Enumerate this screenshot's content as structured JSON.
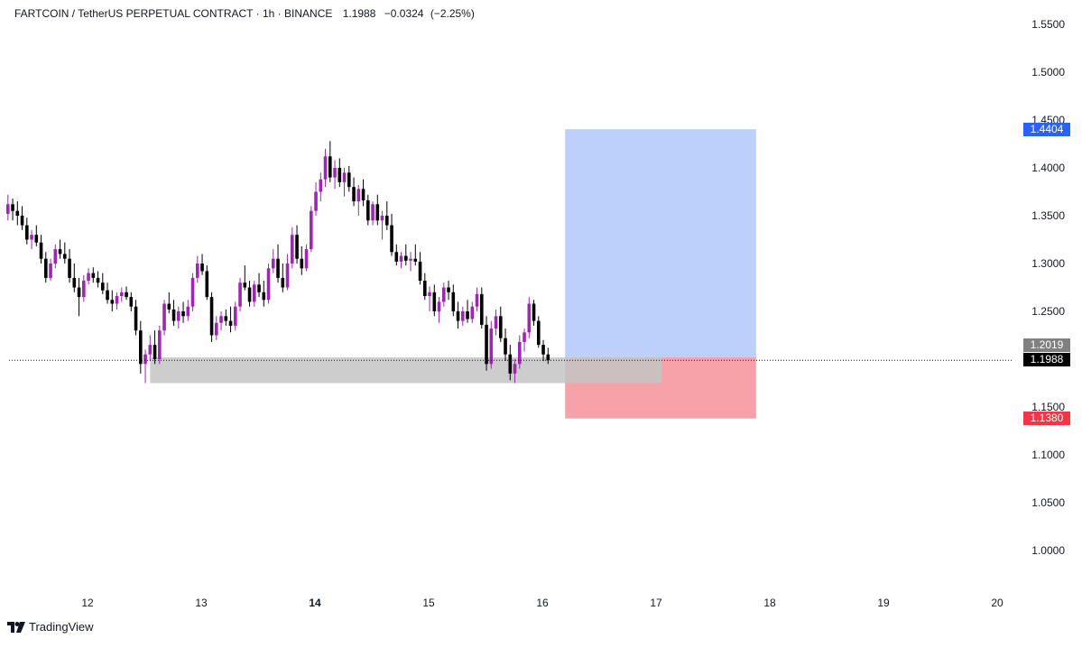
{
  "header": {
    "symbol": "FARTCOIN / TetherUS PERPETUAL CONTRACT",
    "interval": "1h",
    "exchange": "BINANCE",
    "separator": "·",
    "last": "1.1988",
    "change": "−0.0324",
    "change_pct": "(−2.25%)"
  },
  "brand": {
    "name": "TradingView",
    "logo_icon": "tradingview-logo-icon"
  },
  "colors": {
    "bull": "#9c27b0",
    "bear": "#000000",
    "profit_zone": "#bcd0fb",
    "loss_zone": "#f7a1a8",
    "support_zone": "#c4c4c4",
    "target_tag": "#2962ff",
    "stop_tag": "#f23645",
    "entry_tag": "#808080",
    "last_tag": "#000000"
  },
  "price_tags": {
    "target": "1.4404",
    "entry": "1.2019",
    "last": "1.1988",
    "stop": "1.1380"
  },
  "chart_data": {
    "type": "candlestick",
    "xlabel": "",
    "ylabel": "",
    "x_ticks": [
      {
        "label": "12",
        "day": 12,
        "bold": false
      },
      {
        "label": "13",
        "day": 13,
        "bold": false
      },
      {
        "label": "14",
        "day": 14,
        "bold": true
      },
      {
        "label": "15",
        "day": 15,
        "bold": false
      },
      {
        "label": "16",
        "day": 16,
        "bold": false
      },
      {
        "label": "17",
        "day": 17,
        "bold": false
      },
      {
        "label": "18",
        "day": 18,
        "bold": false
      },
      {
        "label": "19",
        "day": 19,
        "bold": false
      },
      {
        "label": "20",
        "day": 20,
        "bold": false
      }
    ],
    "y_ticks": [
      "1.5500",
      "1.5000",
      "1.4500",
      "1.4000",
      "1.3500",
      "1.3000",
      "1.2500",
      "1.1500",
      "1.1000",
      "1.0500",
      "1.0000"
    ],
    "ylim": [
      0.955,
      1.58
    ],
    "xlim": [
      11.3,
      20.25
    ],
    "last_price": 1.1988,
    "grid": false,
    "zones": {
      "support": {
        "x_start": 12.55,
        "x_end": 17.05,
        "y_low": 1.175,
        "y_high": 1.2019
      },
      "long_position": {
        "x_start": 16.2,
        "x_end": 17.88,
        "entry": 1.2019,
        "target": 1.4404,
        "stop": 1.138
      }
    },
    "candles_hourly": "hourly OHLC, first candle at day 11.3, step 1/24 day",
    "candles": [
      [
        1.352,
        1.372,
        1.345,
        1.362
      ],
      [
        1.362,
        1.368,
        1.345,
        1.355
      ],
      [
        1.355,
        1.365,
        1.34,
        1.35
      ],
      [
        1.35,
        1.36,
        1.335,
        1.34
      ],
      [
        1.34,
        1.348,
        1.32,
        1.325
      ],
      [
        1.325,
        1.335,
        1.315,
        1.33
      ],
      [
        1.33,
        1.34,
        1.318,
        1.322
      ],
      [
        1.322,
        1.33,
        1.3,
        1.305
      ],
      [
        1.305,
        1.312,
        1.28,
        1.285
      ],
      [
        1.285,
        1.305,
        1.282,
        1.3
      ],
      [
        1.3,
        1.32,
        1.295,
        1.315
      ],
      [
        1.315,
        1.325,
        1.305,
        1.31
      ],
      [
        1.31,
        1.322,
        1.3,
        1.305
      ],
      [
        1.305,
        1.315,
        1.28,
        1.285
      ],
      [
        1.285,
        1.3,
        1.27,
        1.275
      ],
      [
        1.275,
        1.285,
        1.245,
        1.265
      ],
      [
        1.265,
        1.288,
        1.26,
        1.282
      ],
      [
        1.282,
        1.295,
        1.278,
        1.29
      ],
      [
        1.29,
        1.296,
        1.28,
        1.285
      ],
      [
        1.285,
        1.292,
        1.275,
        1.28
      ],
      [
        1.28,
        1.29,
        1.268,
        1.272
      ],
      [
        1.272,
        1.28,
        1.258,
        1.262
      ],
      [
        1.262,
        1.272,
        1.25,
        1.258
      ],
      [
        1.258,
        1.27,
        1.252,
        1.266
      ],
      [
        1.266,
        1.275,
        1.26,
        1.27
      ],
      [
        1.27,
        1.276,
        1.262,
        1.265
      ],
      [
        1.265,
        1.27,
        1.25,
        1.255
      ],
      [
        1.255,
        1.262,
        1.225,
        1.23
      ],
      [
        1.23,
        1.24,
        1.185,
        1.195
      ],
      [
        1.195,
        1.21,
        1.175,
        1.205
      ],
      [
        1.205,
        1.225,
        1.198,
        1.215
      ],
      [
        1.215,
        1.23,
        1.195,
        1.2
      ],
      [
        1.2,
        1.235,
        1.195,
        1.23
      ],
      [
        1.23,
        1.262,
        1.225,
        1.258
      ],
      [
        1.258,
        1.27,
        1.248,
        1.252
      ],
      [
        1.252,
        1.262,
        1.235,
        1.24
      ],
      [
        1.24,
        1.255,
        1.232,
        1.25
      ],
      [
        1.25,
        1.26,
        1.238,
        1.245
      ],
      [
        1.245,
        1.262,
        1.24,
        1.255
      ],
      [
        1.255,
        1.29,
        1.25,
        1.285
      ],
      [
        1.285,
        1.308,
        1.28,
        1.3
      ],
      [
        1.3,
        1.31,
        1.288,
        1.292
      ],
      [
        1.292,
        1.298,
        1.262,
        1.265
      ],
      [
        1.265,
        1.27,
        1.218,
        1.225
      ],
      [
        1.225,
        1.245,
        1.22,
        1.238
      ],
      [
        1.238,
        1.25,
        1.23,
        1.245
      ],
      [
        1.245,
        1.252,
        1.235,
        1.24
      ],
      [
        1.24,
        1.255,
        1.228,
        1.235
      ],
      [
        1.235,
        1.26,
        1.23,
        1.255
      ],
      [
        1.255,
        1.285,
        1.25,
        1.28
      ],
      [
        1.28,
        1.298,
        1.272,
        1.275
      ],
      [
        1.275,
        1.282,
        1.255,
        1.26
      ],
      [
        1.26,
        1.282,
        1.255,
        1.278
      ],
      [
        1.278,
        1.29,
        1.265,
        1.27
      ],
      [
        1.27,
        1.282,
        1.255,
        1.262
      ],
      [
        1.262,
        1.3,
        1.258,
        1.295
      ],
      [
        1.295,
        1.315,
        1.29,
        1.305
      ],
      [
        1.305,
        1.32,
        1.28,
        1.285
      ],
      [
        1.285,
        1.3,
        1.27,
        1.275
      ],
      [
        1.275,
        1.31,
        1.272,
        1.3
      ],
      [
        1.3,
        1.338,
        1.295,
        1.33
      ],
      [
        1.33,
        1.34,
        1.3,
        1.305
      ],
      [
        1.305,
        1.318,
        1.288,
        1.295
      ],
      [
        1.295,
        1.32,
        1.292,
        1.315
      ],
      [
        1.315,
        1.36,
        1.312,
        1.355
      ],
      [
        1.355,
        1.385,
        1.35,
        1.375
      ],
      [
        1.375,
        1.395,
        1.365,
        1.388
      ],
      [
        1.388,
        1.42,
        1.38,
        1.412
      ],
      [
        1.412,
        1.428,
        1.385,
        1.39
      ],
      [
        1.39,
        1.408,
        1.378,
        1.4
      ],
      [
        1.4,
        1.41,
        1.38,
        1.385
      ],
      [
        1.385,
        1.4,
        1.37,
        1.395
      ],
      [
        1.395,
        1.402,
        1.375,
        1.38
      ],
      [
        1.38,
        1.39,
        1.36,
        1.365
      ],
      [
        1.365,
        1.382,
        1.35,
        1.378
      ],
      [
        1.378,
        1.388,
        1.36,
        1.366
      ],
      [
        1.366,
        1.372,
        1.34,
        1.345
      ],
      [
        1.345,
        1.365,
        1.34,
        1.362
      ],
      [
        1.362,
        1.372,
        1.34,
        1.345
      ],
      [
        1.345,
        1.355,
        1.325,
        1.35
      ],
      [
        1.35,
        1.365,
        1.335,
        1.34
      ],
      [
        1.34,
        1.352,
        1.308,
        1.312
      ],
      [
        1.312,
        1.32,
        1.298,
        1.302
      ],
      [
        1.302,
        1.312,
        1.295,
        1.308
      ],
      [
        1.308,
        1.32,
        1.298,
        1.303
      ],
      [
        1.303,
        1.312,
        1.292,
        1.305
      ],
      [
        1.305,
        1.32,
        1.298,
        1.302
      ],
      [
        1.302,
        1.312,
        1.278,
        1.282
      ],
      [
        1.282,
        1.29,
        1.262,
        1.266
      ],
      [
        1.266,
        1.276,
        1.25,
        1.27
      ],
      [
        1.27,
        1.278,
        1.245,
        1.25
      ],
      [
        1.25,
        1.265,
        1.238,
        1.26
      ],
      [
        1.26,
        1.28,
        1.255,
        1.275
      ],
      [
        1.275,
        1.282,
        1.262,
        1.27
      ],
      [
        1.27,
        1.278,
        1.245,
        1.25
      ],
      [
        1.25,
        1.26,
        1.232,
        1.24
      ],
      [
        1.24,
        1.255,
        1.235,
        1.25
      ],
      [
        1.25,
        1.262,
        1.238,
        1.242
      ],
      [
        1.242,
        1.26,
        1.238,
        1.255
      ],
      [
        1.255,
        1.275,
        1.25,
        1.268
      ],
      [
        1.268,
        1.275,
        1.232,
        1.236
      ],
      [
        1.236,
        1.245,
        1.188,
        1.195
      ],
      [
        1.195,
        1.24,
        1.19,
        1.232
      ],
      [
        1.232,
        1.252,
        1.225,
        1.245
      ],
      [
        1.245,
        1.255,
        1.218,
        1.222
      ],
      [
        1.222,
        1.232,
        1.198,
        1.205
      ],
      [
        1.205,
        1.215,
        1.178,
        1.185
      ],
      [
        1.185,
        1.2,
        1.175,
        1.195
      ],
      [
        1.195,
        1.225,
        1.19,
        1.218
      ],
      [
        1.218,
        1.232,
        1.208,
        1.228
      ],
      [
        1.228,
        1.265,
        1.222,
        1.258
      ],
      [
        1.258,
        1.262,
        1.235,
        1.24
      ],
      [
        1.24,
        1.245,
        1.212,
        1.215
      ],
      [
        1.215,
        1.22,
        1.198,
        1.205
      ],
      [
        1.205,
        1.212,
        1.195,
        1.1988
      ]
    ]
  }
}
